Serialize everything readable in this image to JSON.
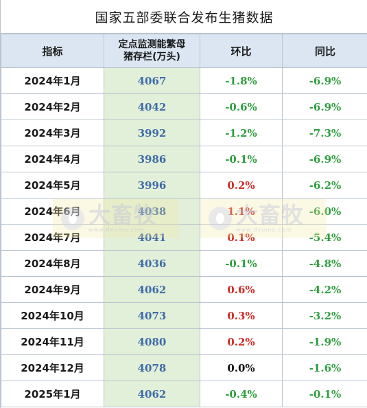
{
  "title": "国家五部委联合发布生猪数据",
  "headers": {
    "indicator": "指标",
    "stock": "定点监测能繁母猪存栏(万头)",
    "mom": "环比",
    "yoy": "同比"
  },
  "rows": [
    {
      "month": "2024年1月",
      "stock": "4067",
      "mom": "-1.8%",
      "yoy": "-6.9%"
    },
    {
      "month": "2024年2月",
      "stock": "4042",
      "mom": "-0.6%",
      "yoy": "-6.9%"
    },
    {
      "month": "2024年3月",
      "stock": "3992",
      "mom": "-1.2%",
      "yoy": "-7.3%"
    },
    {
      "month": "2024年4月",
      "stock": "3986",
      "mom": "-0.1%",
      "yoy": "-6.9%"
    },
    {
      "month": "2024年5月",
      "stock": "3996",
      "mom": "0.2%",
      "yoy": "-6.2%"
    },
    {
      "month": "2024年6月",
      "stock": "4038",
      "mom": "1.1%",
      "yoy": "-6.0%"
    },
    {
      "month": "2024年7月",
      "stock": "4041",
      "mom": "0.1%",
      "yoy": "-5.4%"
    },
    {
      "month": "2024年8月",
      "stock": "4036",
      "mom": "-0.1%",
      "yoy": "-4.8%"
    },
    {
      "month": "2024年9月",
      "stock": "4062",
      "mom": "0.6%",
      "yoy": "-4.2%"
    },
    {
      "month": "2024年10月",
      "stock": "4073",
      "mom": "0.3%",
      "yoy": "-3.2%"
    },
    {
      "month": "2024年11月",
      "stock": "4080",
      "mom": "0.2%",
      "yoy": "-1.9%"
    },
    {
      "month": "2024年12月",
      "stock": "4078",
      "mom": "0.0%",
      "yoy": "-1.6%"
    },
    {
      "month": "2025年1月",
      "stock": "4062",
      "mom": "-0.4%",
      "yoy": "-0.1%"
    }
  ],
  "watermark": {
    "brand": "大畜牧",
    "url": "www.dxumu.com"
  },
  "colors": {
    "header_bg": "#dbe6f2",
    "stock_bg": "#e2efd9",
    "stock_text": "#3e6aa8",
    "negative": "#2e9e3e",
    "positive": "#d12a24",
    "zero": "#111111",
    "border": "#b9c4d0"
  }
}
